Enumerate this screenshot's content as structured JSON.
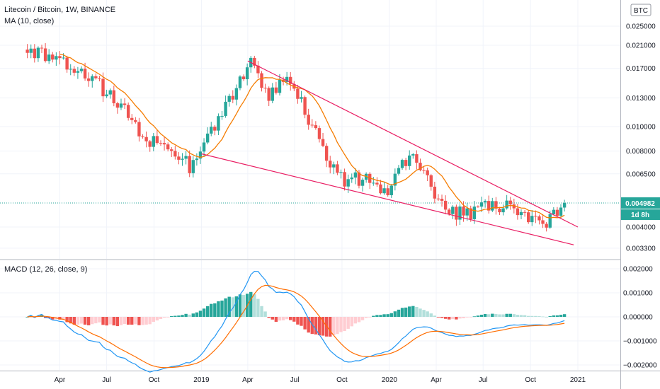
{
  "header": {
    "title": "Litecoin / Bitcoin, 1W, BINANCE",
    "ma_label": "MA (10, close)",
    "macd_label": "MACD (12, 26, close, 9)",
    "currency_badge": "BTC",
    "last_price": "0.004982",
    "countdown": "1d 8h"
  },
  "colors": {
    "up": "#26a69a",
    "down": "#ef5350",
    "hist_up_light": "#b2dfdb",
    "hist_down_light": "#ffcdd2",
    "ma": "#f57c00",
    "macd_line": "#2196f3",
    "signal_line": "#ff6d00",
    "trendline": "#e91e63"
  },
  "chart_data": {
    "type": "candlestick",
    "title": "Litecoin / Bitcoin, 1W, BINANCE",
    "y_scale": "log",
    "y_ticks": [
      "0.025000",
      "0.021000",
      "0.017000",
      "0.013000",
      "0.010000",
      "0.008000",
      "0.006500",
      "0.004000",
      "0.003300"
    ],
    "y_tick_values": [
      0.025,
      0.021,
      0.017,
      0.013,
      0.01,
      0.008,
      0.0065,
      0.004,
      0.0033
    ],
    "x_ticks": [
      "Apr",
      "Jul",
      "Oct",
      "2019",
      "Apr",
      "Jul",
      "Oct",
      "2020",
      "Apr",
      "Jul",
      "Oct",
      "2021"
    ],
    "x_tick_dates": [
      "2018-04-01",
      "2018-07-01",
      "2018-10-01",
      "2019-01-01",
      "2019-04-01",
      "2019-07-01",
      "2019-10-01",
      "2020-01-01",
      "2020-04-01",
      "2020-07-01",
      "2020-10-01",
      "2021-01-01"
    ],
    "ylim": [
      0.00305,
      0.0305
    ],
    "last_value": 0.004982,
    "weekly_close_anchors": [
      [
        "2018-01-28",
        0.0205
      ],
      [
        "2018-03-11",
        0.019
      ],
      [
        "2018-04-08",
        0.0175
      ],
      [
        "2018-05-13",
        0.0168
      ],
      [
        "2018-06-10",
        0.015
      ],
      [
        "2018-07-08",
        0.0132
      ],
      [
        "2018-08-12",
        0.0112
      ],
      [
        "2018-09-16",
        0.0087
      ],
      [
        "2018-10-28",
        0.0085
      ],
      [
        "2018-12-09",
        0.007
      ],
      [
        "2019-01-13",
        0.009
      ],
      [
        "2019-02-24",
        0.0128
      ],
      [
        "2019-04-07",
        0.0178
      ],
      [
        "2019-05-12",
        0.0135
      ],
      [
        "2019-06-16",
        0.0155
      ],
      [
        "2019-07-21",
        0.0115
      ],
      [
        "2019-08-25",
        0.008
      ],
      [
        "2019-10-06",
        0.006
      ],
      [
        "2019-11-17",
        0.0063
      ],
      [
        "2019-12-29",
        0.0055
      ],
      [
        "2020-02-09",
        0.0078
      ],
      [
        "2020-03-15",
        0.0064
      ],
      [
        "2020-04-19",
        0.0045
      ],
      [
        "2020-05-31",
        0.0045
      ],
      [
        "2020-07-12",
        0.0048
      ],
      [
        "2020-08-23",
        0.005
      ],
      [
        "2020-09-20",
        0.0043
      ],
      [
        "2020-10-25",
        0.004
      ],
      [
        "2020-11-15",
        0.0044
      ],
      [
        "2020-12-06",
        0.004982
      ]
    ],
    "trendlines": [
      {
        "name": "upper",
        "from": [
          "2019-04-01",
          0.0182
        ],
        "to": [
          "2021-01-01",
          0.004
        ]
      },
      {
        "name": "lower",
        "from": [
          "2019-01-01",
          0.0078
        ],
        "to": [
          "2020-12-24",
          0.0034
        ]
      }
    ],
    "ma": {
      "label": "MA (10, close)",
      "period": 10
    },
    "macd": {
      "label": "MACD (12, 26, close, 9)",
      "y_ticks": [
        "0.002000",
        "0.001000",
        "0.000000",
        "−0.001000",
        "−0.002000"
      ],
      "y_tick_values": [
        0.002,
        0.001,
        0,
        -0.001,
        -0.002
      ],
      "ylim": [
        -0.00232,
        0.00232
      ]
    }
  }
}
